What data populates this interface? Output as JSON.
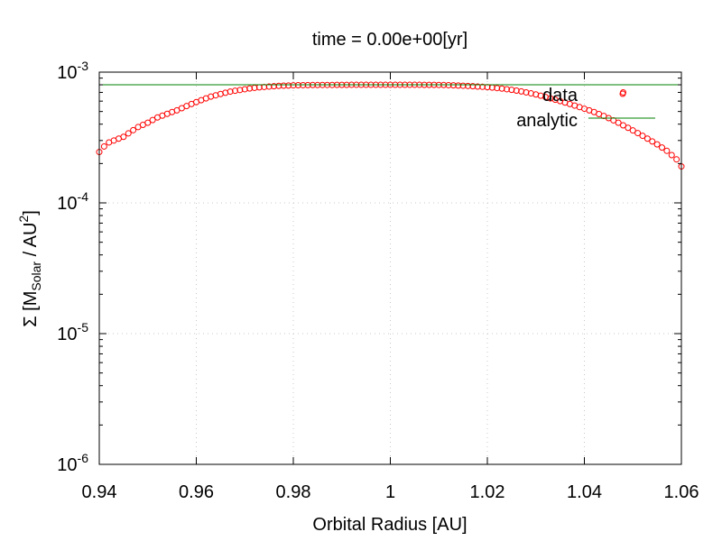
{
  "chart_data": {
    "type": "scatter",
    "title": "time = 0.00e+00[yr]",
    "xlabel": "Orbital Radius [AU]",
    "ylabel": {
      "prefix": "Σ [M",
      "subscript": "Solar",
      "middle": " / AU",
      "superscript": "2",
      "suffix": "]"
    },
    "xlim": [
      0.94,
      1.06
    ],
    "ylim": [
      1e-06,
      0.001
    ],
    "yscale": "log",
    "grid": true,
    "x_ticks": [
      {
        "value": 0.94,
        "label": "0.94"
      },
      {
        "value": 0.96,
        "label": "0.96"
      },
      {
        "value": 0.98,
        "label": "0.98"
      },
      {
        "value": 1.0,
        "label": "1"
      },
      {
        "value": 1.02,
        "label": "1.02"
      },
      {
        "value": 1.04,
        "label": "1.04"
      },
      {
        "value": 1.06,
        "label": "1.06"
      }
    ],
    "y_ticks": [
      {
        "value": 1e-06,
        "base": "10",
        "exp": "-6"
      },
      {
        "value": 1e-05,
        "base": "10",
        "exp": "-5"
      },
      {
        "value": 0.0001,
        "base": "10",
        "exp": "-4"
      },
      {
        "value": 0.001,
        "base": "10",
        "exp": "-3"
      }
    ],
    "legend_position": "top-right",
    "series": [
      {
        "name": "data",
        "type": "scatter",
        "marker": "open-circle",
        "color": "#ff0000",
        "x": [
          0.94,
          0.941,
          0.942,
          0.943,
          0.944,
          0.945,
          0.946,
          0.947,
          0.948,
          0.949,
          0.95,
          0.951,
          0.952,
          0.953,
          0.954,
          0.955,
          0.956,
          0.957,
          0.958,
          0.959,
          0.96,
          0.961,
          0.962,
          0.963,
          0.964,
          0.965,
          0.966,
          0.967,
          0.968,
          0.969,
          0.97,
          0.971,
          0.972,
          0.973,
          0.974,
          0.975,
          0.976,
          0.977,
          0.978,
          0.979,
          0.98,
          0.981,
          0.982,
          0.983,
          0.984,
          0.985,
          0.986,
          0.987,
          0.988,
          0.989,
          0.99,
          0.991,
          0.992,
          0.993,
          0.994,
          0.995,
          0.996,
          0.997,
          0.998,
          0.999,
          1.0,
          1.001,
          1.002,
          1.003,
          1.004,
          1.005,
          1.006,
          1.007,
          1.008,
          1.009,
          1.01,
          1.011,
          1.012,
          1.013,
          1.014,
          1.015,
          1.016,
          1.017,
          1.018,
          1.019,
          1.02,
          1.021,
          1.022,
          1.023,
          1.024,
          1.025,
          1.026,
          1.027,
          1.028,
          1.029,
          1.03,
          1.031,
          1.032,
          1.033,
          1.034,
          1.035,
          1.036,
          1.037,
          1.038,
          1.039,
          1.04,
          1.041,
          1.042,
          1.043,
          1.044,
          1.045,
          1.046,
          1.047,
          1.048,
          1.049,
          1.05,
          1.051,
          1.052,
          1.053,
          1.054,
          1.055,
          1.056,
          1.057,
          1.058,
          1.059,
          1.06,
          1.048
        ],
        "y": [
          0.000245,
          0.00027,
          0.00029,
          0.0003,
          0.00031,
          0.00032,
          0.00034,
          0.00036,
          0.00038,
          0.000395,
          0.00041,
          0.00043,
          0.00045,
          0.000465,
          0.00048,
          0.000495,
          0.00051,
          0.00053,
          0.00055,
          0.00057,
          0.00059,
          0.00061,
          0.00063,
          0.00065,
          0.000665,
          0.00068,
          0.000695,
          0.00071,
          0.00072,
          0.00073,
          0.00074,
          0.00075,
          0.000758,
          0.000765,
          0.00077,
          0.000775,
          0.00078,
          0.000785,
          0.000788,
          0.00079,
          0.000792,
          0.000794,
          0.000795,
          0.000796,
          0.000797,
          0.000797,
          0.000798,
          0.000798,
          0.000798,
          0.000799,
          0.000799,
          0.000799,
          0.0008,
          0.0008,
          0.0008,
          0.0008,
          0.0008,
          0.0008,
          0.0008,
          0.0008,
          0.0008,
          0.0008,
          0.0008,
          0.0008,
          0.0008,
          0.0008,
          0.0008,
          0.000799,
          0.000799,
          0.000799,
          0.000798,
          0.000797,
          0.000795,
          0.000793,
          0.00079,
          0.000787,
          0.000784,
          0.00078,
          0.000776,
          0.000772,
          0.000768,
          0.000762,
          0.000755,
          0.000748,
          0.00074,
          0.000732,
          0.000722,
          0.000712,
          0.0007,
          0.000688,
          0.000675,
          0.00066,
          0.000645,
          0.00063,
          0.000615,
          0.0006,
          0.000585,
          0.00057,
          0.000555,
          0.00054,
          0.000525,
          0.00051,
          0.000495,
          0.000478,
          0.000462,
          0.000445,
          0.000428,
          0.00041,
          0.000392,
          0.000375,
          0.000358,
          0.000342,
          0.000326,
          0.00031,
          0.000295,
          0.00028,
          0.000265,
          0.00025,
          0.000232,
          0.000215,
          0.00019,
          0.0007
        ]
      },
      {
        "name": "analytic",
        "type": "line",
        "color": "#008000",
        "x": [
          0.94,
          1.06
        ],
        "y": [
          0.0008,
          0.0008
        ]
      }
    ]
  }
}
